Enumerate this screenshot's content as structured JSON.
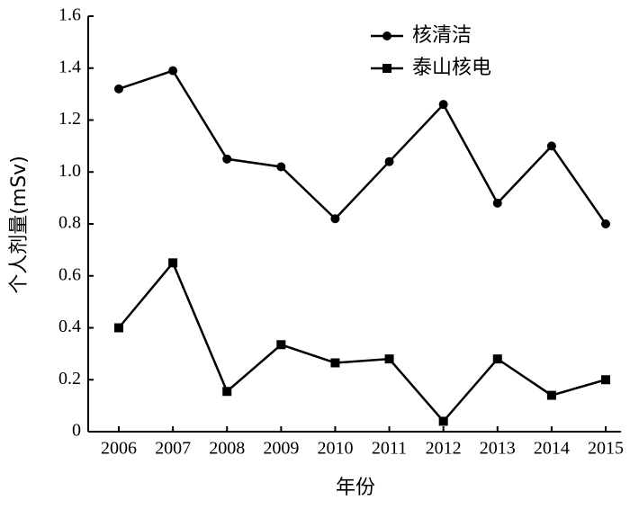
{
  "chart_data": {
    "type": "line",
    "x_label": "年份",
    "y_label": "个人剂量(mSv)",
    "categories": [
      "2006",
      "2007",
      "2008",
      "2009",
      "2010",
      "2011",
      "2012",
      "2013",
      "2014",
      "2015"
    ],
    "series": [
      {
        "name": "核清洁",
        "color": "#000000",
        "marker": "circle",
        "values": [
          1.32,
          1.39,
          1.05,
          1.02,
          0.82,
          1.04,
          1.26,
          0.88,
          1.1,
          0.8
        ]
      },
      {
        "name": "泰山核电",
        "color": "#000000",
        "marker": "square",
        "values": [
          0.4,
          0.65,
          0.155,
          0.335,
          0.265,
          0.28,
          0.04,
          0.28,
          0.14,
          0.2
        ]
      }
    ],
    "ylim": [
      0,
      1.6
    ],
    "yticks": [
      0,
      0.2,
      0.4,
      0.6,
      0.8,
      {
        "value": 1,
        "label": "1.0"
      },
      1.2,
      1.4,
      1.6
    ],
    "grid": false,
    "legend": "upper right"
  }
}
